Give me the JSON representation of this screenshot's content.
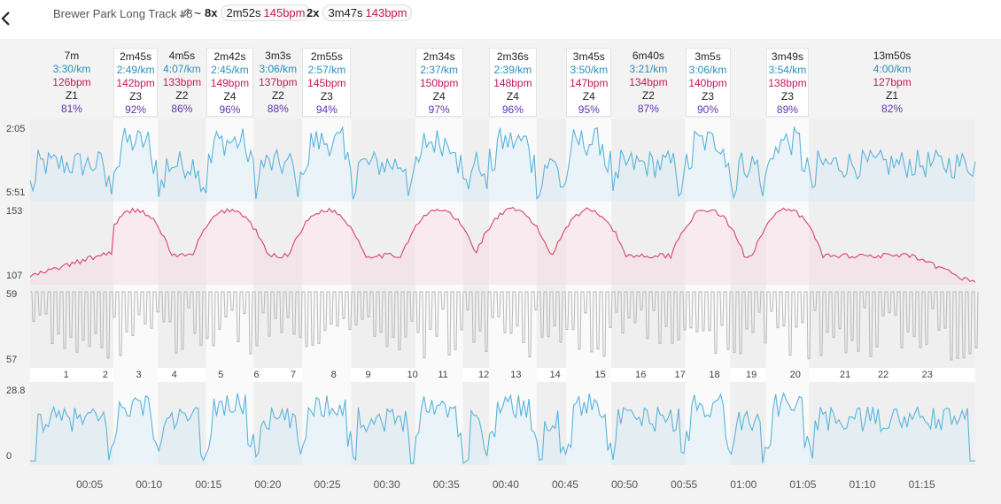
{
  "header": {
    "title": "Brewer Park Long Track #8",
    "tilde": "~",
    "groups": [
      {
        "count": "8x",
        "duration": "2m52s",
        "hr": "145bpm"
      },
      {
        "count": "2x",
        "duration": "3m47s",
        "hr": "143bpm"
      }
    ]
  },
  "colors": {
    "pace": "#5ab4dc",
    "hr": "#d9436b",
    "cadence": "#b8b8b8",
    "work_band": "#ffffff"
  },
  "chart_data": {
    "type": "area",
    "x_ticks": [
      "00:05",
      "00:10",
      "00:15",
      "00:20",
      "00:25",
      "00:30",
      "00:35",
      "00:40",
      "00:45",
      "00:50",
      "00:55",
      "01:00",
      "01:05",
      "01:10",
      "01:15"
    ],
    "x_range_min": [
      0,
      79.5
    ],
    "intervals": [
      {
        "start": 0.0,
        "end": 7.0,
        "type": "rest",
        "duration": "7m",
        "pace": "3:30/km",
        "hr": "126bpm",
        "zone": "Z1",
        "pct": "81%"
      },
      {
        "start": 7.0,
        "end": 10.75,
        "type": "work",
        "duration": "2m45s",
        "pace": "2:49/km",
        "hr": "142bpm",
        "zone": "Z3",
        "pct": "92%"
      },
      {
        "start": 10.75,
        "end": 14.8,
        "type": "rest",
        "duration": "4m5s",
        "pace": "4:07/km",
        "hr": "133bpm",
        "zone": "Z2",
        "pct": "86%"
      },
      {
        "start": 14.8,
        "end": 18.8,
        "type": "work",
        "duration": "2m42s",
        "pace": "2:45/km",
        "hr": "149bpm",
        "zone": "Z4",
        "pct": "96%"
      },
      {
        "start": 18.8,
        "end": 22.9,
        "type": "rest",
        "duration": "3m3s",
        "pace": "3:06/km",
        "hr": "137bpm",
        "zone": "Z2",
        "pct": "88%"
      },
      {
        "start": 22.9,
        "end": 27.0,
        "type": "work",
        "duration": "2m55s",
        "pace": "2:57/km",
        "hr": "145bpm",
        "zone": "Z3",
        "pct": "94%"
      },
      {
        "start": 27.0,
        "end": 32.4,
        "type": "rest",
        "duration": "",
        "pace": "",
        "hr": "",
        "zone": "",
        "pct": ""
      },
      {
        "start": 32.4,
        "end": 36.4,
        "type": "work",
        "duration": "2m34s",
        "pace": "2:37/km",
        "hr": "150bpm",
        "zone": "Z4",
        "pct": "97%"
      },
      {
        "start": 36.4,
        "end": 38.6,
        "type": "rest",
        "duration": "",
        "pace": "",
        "hr": "",
        "zone": "",
        "pct": ""
      },
      {
        "start": 38.6,
        "end": 42.6,
        "type": "work",
        "duration": "2m36s",
        "pace": "2:39/km",
        "hr": "148bpm",
        "zone": "Z4",
        "pct": "96%"
      },
      {
        "start": 42.6,
        "end": 45.1,
        "type": "rest",
        "duration": "",
        "pace": "",
        "hr": "",
        "zone": "",
        "pct": ""
      },
      {
        "start": 45.1,
        "end": 48.9,
        "type": "work",
        "duration": "3m45s",
        "pace": "3:50/km",
        "hr": "147bpm",
        "zone": "Z4",
        "pct": "95%"
      },
      {
        "start": 48.9,
        "end": 55.1,
        "type": "rest",
        "duration": "6m40s",
        "pace": "3:21/km",
        "hr": "134bpm",
        "zone": "Z2",
        "pct": "87%"
      },
      {
        "start": 55.1,
        "end": 58.9,
        "type": "work",
        "duration": "3m5s",
        "pace": "3:06/km",
        "hr": "140bpm",
        "zone": "Z3",
        "pct": "90%"
      },
      {
        "start": 58.9,
        "end": 61.9,
        "type": "rest",
        "duration": "",
        "pace": "",
        "hr": "",
        "zone": "",
        "pct": ""
      },
      {
        "start": 61.9,
        "end": 65.5,
        "type": "work",
        "duration": "3m49s",
        "pace": "3:54/km",
        "hr": "138bpm",
        "zone": "Z3",
        "pct": "89%"
      },
      {
        "start": 65.5,
        "end": 79.5,
        "type": "rest",
        "duration": "13m50s",
        "pace": "4:00/km",
        "hr": "127bpm",
        "zone": "Z1",
        "pct": "82%"
      }
    ],
    "laps": [
      "1",
      "2",
      "3",
      "4",
      "5",
      "6",
      "7",
      "8",
      "9",
      "10",
      "11",
      "12",
      "13",
      "14",
      "15",
      "16",
      "17",
      "18",
      "19",
      "20",
      "21",
      "22",
      "23"
    ],
    "lap_positions_min": [
      3.1,
      6.4,
      9.2,
      12.2,
      16.1,
      19.1,
      22.2,
      25.6,
      28.5,
      32.0,
      34.6,
      38.0,
      40.7,
      44.0,
      47.8,
      51.2,
      54.5,
      57.4,
      60.5,
      64.2,
      68.4,
      71.6,
      75.3
    ],
    "series": [
      {
        "name": "pace",
        "axis_top": "2:05",
        "axis_bottom": "5:51"
      },
      {
        "name": "hr",
        "axis_top": "153",
        "axis_bottom": "107"
      },
      {
        "name": "cadence",
        "axis_top": "59",
        "axis_bottom": "57"
      },
      {
        "name": "speed",
        "axis_top": "28.8",
        "axis_bottom": "0"
      }
    ]
  }
}
